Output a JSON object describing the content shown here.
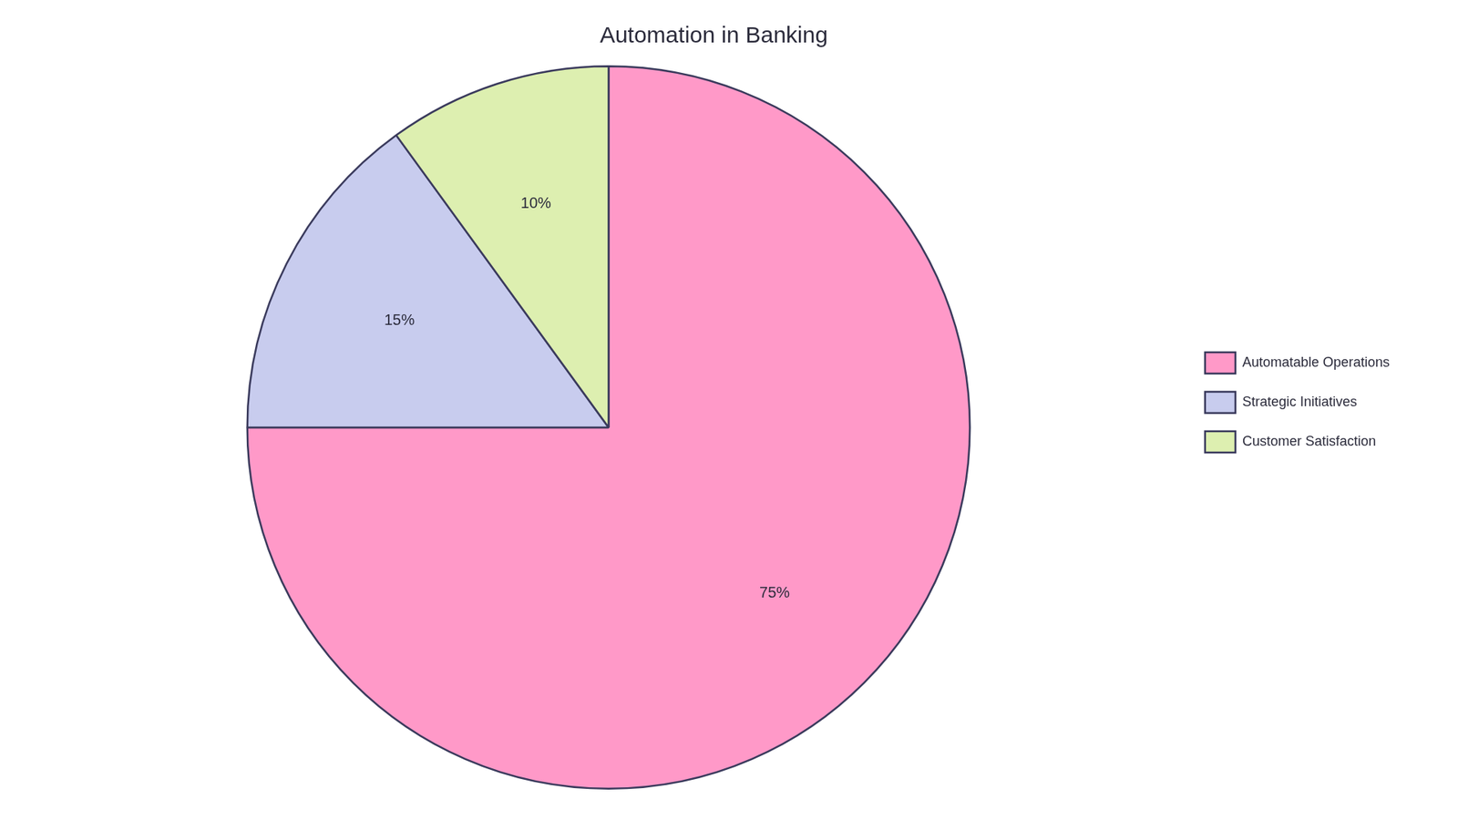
{
  "chart_data": {
    "type": "pie",
    "title": "Automation in Banking",
    "categories": [
      "Automatable Operations",
      "Strategic Initiatives",
      "Customer Satisfaction"
    ],
    "values": [
      75,
      15,
      10
    ],
    "value_labels": [
      "75%",
      "15%",
      "10%"
    ],
    "colors": [
      "#FF99C8",
      "#C8CCEE",
      "#DDEFB0"
    ],
    "data_labels": true,
    "legend": "right"
  }
}
